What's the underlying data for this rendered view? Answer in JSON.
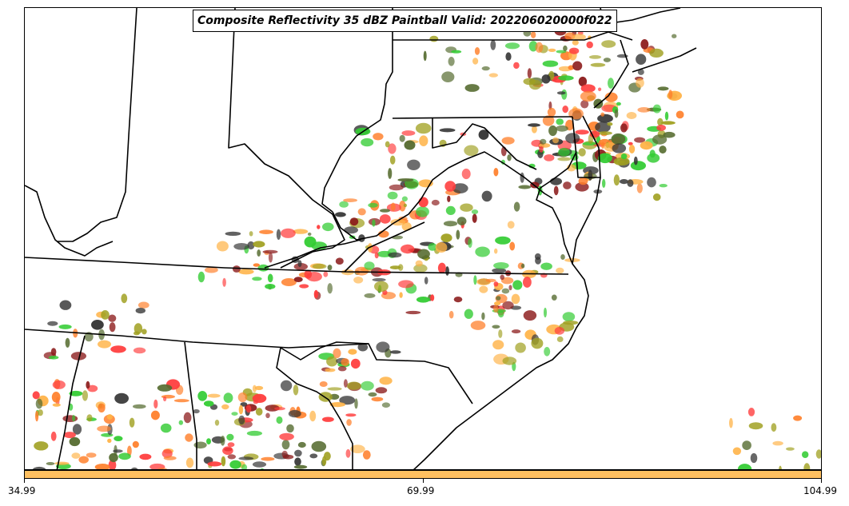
{
  "map": {
    "title": "Composite Reflectivity 35 dBZ Paintball Valid: 202206020000f022",
    "boundary_color": "#000000",
    "member_colors": [
      "#ff3b3b",
      "#ff7f2a",
      "#33cc33",
      "#8b1a1a",
      "#556b2f",
      "#a0a020",
      "#ffb347",
      "#333333"
    ]
  },
  "colorbar": {
    "color": "#ffc060",
    "ticks": [
      "34.99",
      "69.99",
      "104.99"
    ]
  }
}
